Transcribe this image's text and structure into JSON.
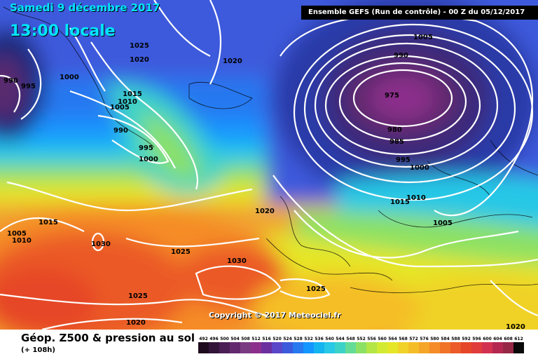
{
  "header": {
    "date": "Samedi 9 décembre 2017",
    "time": "13:00 locale",
    "model": "Ensemble GEFS   (Run de contrôle)   -  00 Z du 05/12/2017"
  },
  "copyright": "Copyright © 2017 Meteociel.fr",
  "footer": {
    "title": "Géop. Z500 & pression au sol",
    "subtitle": "(+ 108h)"
  },
  "isobar_labels": [
    "1025",
    "1020",
    "1020",
    "990",
    "995",
    "1000",
    "1015",
    "1010",
    "1005",
    "990",
    "995",
    "1000",
    "1020",
    "1015",
    "1005",
    "1010",
    "1030",
    "1025",
    "1030",
    "1025",
    "1020",
    "1005",
    "990",
    "975",
    "980",
    "985",
    "995",
    "1000",
    "1010",
    "1015",
    "1005",
    "1025",
    "1020"
  ],
  "legend": {
    "labels": [
      "492",
      "496",
      "500",
      "504",
      "508",
      "512",
      "516",
      "520",
      "524",
      "528",
      "532",
      "536",
      "540",
      "544",
      "548",
      "552",
      "556",
      "560",
      "564",
      "568",
      "572",
      "576",
      "580",
      "584",
      "588",
      "592",
      "596",
      "600",
      "604",
      "608",
      "612"
    ],
    "colors": [
      "#1e0a1e",
      "#32143a",
      "#4b1e55",
      "#642a6e",
      "#7a3a82",
      "#8c2f8c",
      "#6b2fa0",
      "#5a46c8",
      "#3c5adc",
      "#2878f0",
      "#1496ff",
      "#14b4f0",
      "#28c8e6",
      "#3cd2c8",
      "#64dc96",
      "#8ce164",
      "#b4e646",
      "#d2eb32",
      "#e6e628",
      "#f0d228",
      "#f5be28",
      "#f5a528",
      "#f58c28",
      "#f07328",
      "#eb5a28",
      "#e64628",
      "#e13c3c",
      "#d23250",
      "#b42850",
      "#962846",
      "#0a0a0a"
    ]
  }
}
